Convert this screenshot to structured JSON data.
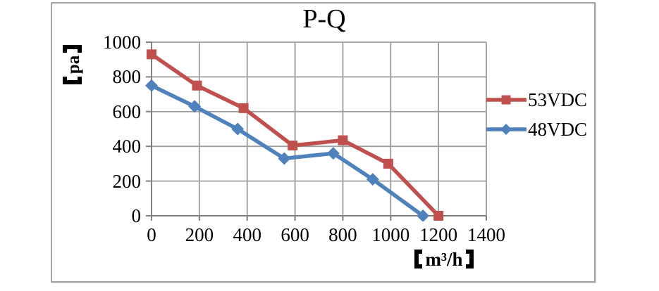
{
  "page": {
    "background": "#ffffff"
  },
  "frame": {
    "border_color": "#a6a6a6",
    "fill": "#ffffff"
  },
  "chart_data": {
    "type": "line",
    "title": "P-Q",
    "xlabel": "【m³/h】",
    "ylabel": "【pa】",
    "xlim": [
      0,
      1400
    ],
    "ylim": [
      0,
      1000
    ],
    "x_ticks": [
      0,
      200,
      400,
      600,
      800,
      1000,
      1200,
      1400
    ],
    "y_ticks": [
      0,
      200,
      400,
      600,
      800,
      1000
    ],
    "grid": true,
    "gridline_color": "#9d9d9d",
    "axis_color": "#808080",
    "legend_position": "right-of-plot",
    "series": [
      {
        "name": "53VDC",
        "color": "#c0504d",
        "marker": "square",
        "points": [
          [
            0,
            930
          ],
          [
            190,
            750
          ],
          [
            385,
            620
          ],
          [
            590,
            405
          ],
          [
            800,
            435
          ],
          [
            990,
            300
          ],
          [
            1200,
            0
          ]
        ]
      },
      {
        "name": "48VDC",
        "color": "#4f81bd",
        "marker": "diamond",
        "points": [
          [
            0,
            750
          ],
          [
            180,
            630
          ],
          [
            360,
            500
          ],
          [
            555,
            330
          ],
          [
            760,
            360
          ],
          [
            925,
            210
          ],
          [
            1135,
            0
          ]
        ]
      }
    ]
  }
}
